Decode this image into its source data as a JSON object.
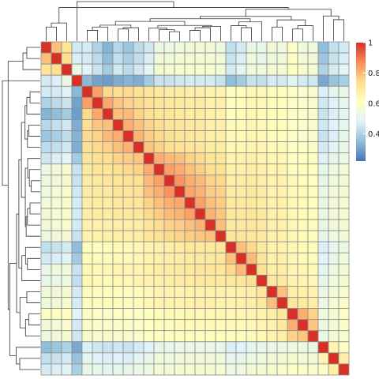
{
  "chart_data": {
    "type": "heatmap",
    "title": "",
    "legend": {
      "position": "right",
      "ticks": [
        "1",
        "0.8",
        "0.6",
        "0.4"
      ],
      "tick_values": [
        1,
        0.8,
        0.6,
        0.4
      ],
      "range": [
        0.22,
        1.0
      ],
      "colors": [
        "#4575b4",
        "#91bfdb",
        "#e0f3f8",
        "#ffffbf",
        "#fee090",
        "#fc8d59",
        "#d73027"
      ]
    },
    "row_dendrogram": true,
    "column_dendrogram": true,
    "grid": true,
    "cell_border_color": "#8c8c8c",
    "n": 30,
    "values": [
      [
        1.0,
        0.79,
        0.72,
        0.46,
        0.46,
        0.4,
        0.33,
        0.41,
        0.37,
        0.42,
        0.45,
        0.53,
        0.53,
        0.54,
        0.55,
        0.55,
        0.55,
        0.53,
        0.43,
        0.46,
        0.52,
        0.51,
        0.55,
        0.54,
        0.6,
        0.55,
        0.54,
        0.35,
        0.43,
        0.46
      ],
      [
        0.79,
        1.0,
        0.74,
        0.47,
        0.46,
        0.42,
        0.35,
        0.43,
        0.39,
        0.43,
        0.47,
        0.55,
        0.55,
        0.56,
        0.56,
        0.56,
        0.56,
        0.55,
        0.44,
        0.47,
        0.54,
        0.52,
        0.55,
        0.55,
        0.6,
        0.56,
        0.55,
        0.37,
        0.44,
        0.47
      ],
      [
        0.72,
        0.74,
        1.0,
        0.52,
        0.48,
        0.44,
        0.38,
        0.45,
        0.42,
        0.45,
        0.49,
        0.57,
        0.57,
        0.58,
        0.58,
        0.58,
        0.58,
        0.56,
        0.46,
        0.49,
        0.55,
        0.54,
        0.57,
        0.57,
        0.61,
        0.58,
        0.57,
        0.4,
        0.46,
        0.49
      ],
      [
        0.46,
        0.47,
        0.52,
        1.0,
        0.34,
        0.3,
        0.29,
        0.32,
        0.33,
        0.32,
        0.38,
        0.44,
        0.44,
        0.45,
        0.46,
        0.46,
        0.46,
        0.44,
        0.35,
        0.38,
        0.44,
        0.43,
        0.46,
        0.46,
        0.49,
        0.46,
        0.45,
        0.31,
        0.36,
        0.39
      ],
      [
        0.46,
        0.46,
        0.48,
        0.34,
        1.0,
        0.84,
        0.75,
        0.74,
        0.75,
        0.73,
        0.71,
        0.7,
        0.69,
        0.69,
        0.68,
        0.68,
        0.66,
        0.66,
        0.62,
        0.62,
        0.64,
        0.64,
        0.62,
        0.62,
        0.6,
        0.59,
        0.58,
        0.47,
        0.5,
        0.52
      ],
      [
        0.4,
        0.42,
        0.44,
        0.3,
        0.84,
        1.0,
        0.83,
        0.78,
        0.76,
        0.75,
        0.73,
        0.72,
        0.7,
        0.7,
        0.69,
        0.69,
        0.67,
        0.67,
        0.62,
        0.62,
        0.64,
        0.64,
        0.62,
        0.62,
        0.6,
        0.59,
        0.58,
        0.45,
        0.48,
        0.51
      ],
      [
        0.33,
        0.35,
        0.38,
        0.29,
        0.75,
        0.83,
        1.0,
        0.79,
        0.8,
        0.76,
        0.74,
        0.72,
        0.71,
        0.7,
        0.69,
        0.69,
        0.67,
        0.67,
        0.62,
        0.62,
        0.64,
        0.63,
        0.62,
        0.62,
        0.59,
        0.59,
        0.58,
        0.44,
        0.47,
        0.5
      ],
      [
        0.41,
        0.43,
        0.45,
        0.32,
        0.74,
        0.78,
        0.79,
        1.0,
        0.82,
        0.79,
        0.76,
        0.74,
        0.72,
        0.72,
        0.7,
        0.7,
        0.68,
        0.68,
        0.63,
        0.63,
        0.65,
        0.64,
        0.62,
        0.62,
        0.6,
        0.59,
        0.58,
        0.45,
        0.48,
        0.51
      ],
      [
        0.37,
        0.39,
        0.42,
        0.33,
        0.75,
        0.76,
        0.8,
        0.82,
        1.0,
        0.81,
        0.77,
        0.75,
        0.73,
        0.72,
        0.71,
        0.7,
        0.68,
        0.68,
        0.63,
        0.63,
        0.65,
        0.64,
        0.62,
        0.62,
        0.6,
        0.59,
        0.58,
        0.44,
        0.47,
        0.51
      ],
      [
        0.42,
        0.43,
        0.45,
        0.32,
        0.73,
        0.75,
        0.76,
        0.79,
        0.81,
        1.0,
        0.78,
        0.76,
        0.74,
        0.73,
        0.72,
        0.71,
        0.69,
        0.69,
        0.64,
        0.64,
        0.65,
        0.65,
        0.63,
        0.63,
        0.6,
        0.6,
        0.59,
        0.46,
        0.49,
        0.52
      ],
      [
        0.45,
        0.47,
        0.49,
        0.38,
        0.71,
        0.73,
        0.74,
        0.76,
        0.77,
        0.78,
        1.0,
        0.82,
        0.8,
        0.79,
        0.76,
        0.75,
        0.72,
        0.71,
        0.66,
        0.66,
        0.67,
        0.66,
        0.64,
        0.64,
        0.61,
        0.61,
        0.6,
        0.48,
        0.51,
        0.53
      ],
      [
        0.53,
        0.55,
        0.57,
        0.44,
        0.7,
        0.72,
        0.72,
        0.74,
        0.75,
        0.76,
        0.82,
        1.0,
        0.84,
        0.82,
        0.79,
        0.77,
        0.74,
        0.73,
        0.67,
        0.67,
        0.68,
        0.67,
        0.65,
        0.65,
        0.62,
        0.62,
        0.61,
        0.51,
        0.54,
        0.56
      ],
      [
        0.53,
        0.55,
        0.57,
        0.44,
        0.69,
        0.7,
        0.71,
        0.72,
        0.73,
        0.74,
        0.8,
        0.84,
        1.0,
        0.86,
        0.82,
        0.8,
        0.76,
        0.75,
        0.68,
        0.68,
        0.69,
        0.68,
        0.66,
        0.66,
        0.63,
        0.62,
        0.61,
        0.51,
        0.54,
        0.56
      ],
      [
        0.54,
        0.56,
        0.58,
        0.45,
        0.69,
        0.7,
        0.7,
        0.72,
        0.72,
        0.73,
        0.79,
        0.82,
        0.86,
        1.0,
        0.83,
        0.81,
        0.77,
        0.76,
        0.69,
        0.69,
        0.7,
        0.69,
        0.66,
        0.66,
        0.63,
        0.63,
        0.62,
        0.52,
        0.55,
        0.57
      ],
      [
        0.55,
        0.56,
        0.58,
        0.46,
        0.68,
        0.69,
        0.69,
        0.7,
        0.71,
        0.72,
        0.76,
        0.79,
        0.82,
        0.83,
        1.0,
        0.84,
        0.79,
        0.77,
        0.7,
        0.7,
        0.7,
        0.69,
        0.67,
        0.67,
        0.64,
        0.63,
        0.62,
        0.52,
        0.55,
        0.57
      ],
      [
        0.55,
        0.56,
        0.58,
        0.46,
        0.68,
        0.69,
        0.69,
        0.7,
        0.7,
        0.71,
        0.75,
        0.77,
        0.8,
        0.81,
        0.84,
        1.0,
        0.81,
        0.78,
        0.7,
        0.7,
        0.71,
        0.7,
        0.67,
        0.67,
        0.64,
        0.63,
        0.62,
        0.52,
        0.55,
        0.57
      ],
      [
        0.55,
        0.56,
        0.58,
        0.46,
        0.66,
        0.67,
        0.67,
        0.68,
        0.68,
        0.69,
        0.72,
        0.74,
        0.76,
        0.77,
        0.79,
        0.81,
        1.0,
        0.79,
        0.7,
        0.7,
        0.71,
        0.7,
        0.67,
        0.67,
        0.64,
        0.63,
        0.62,
        0.52,
        0.55,
        0.57
      ],
      [
        0.53,
        0.55,
        0.56,
        0.44,
        0.66,
        0.67,
        0.67,
        0.68,
        0.68,
        0.69,
        0.71,
        0.73,
        0.75,
        0.76,
        0.77,
        0.78,
        0.79,
        1.0,
        0.71,
        0.71,
        0.71,
        0.7,
        0.67,
        0.67,
        0.64,
        0.63,
        0.62,
        0.51,
        0.54,
        0.56
      ],
      [
        0.43,
        0.44,
        0.46,
        0.35,
        0.62,
        0.62,
        0.62,
        0.63,
        0.63,
        0.64,
        0.66,
        0.67,
        0.68,
        0.69,
        0.7,
        0.7,
        0.7,
        0.71,
        1.0,
        0.79,
        0.75,
        0.7,
        0.66,
        0.66,
        0.64,
        0.63,
        0.62,
        0.47,
        0.5,
        0.53
      ],
      [
        0.46,
        0.47,
        0.49,
        0.38,
        0.62,
        0.62,
        0.62,
        0.63,
        0.63,
        0.64,
        0.66,
        0.67,
        0.68,
        0.69,
        0.7,
        0.7,
        0.7,
        0.71,
        0.79,
        1.0,
        0.8,
        0.71,
        0.67,
        0.67,
        0.64,
        0.63,
        0.62,
        0.48,
        0.51,
        0.54
      ],
      [
        0.52,
        0.54,
        0.55,
        0.44,
        0.64,
        0.64,
        0.64,
        0.65,
        0.65,
        0.65,
        0.67,
        0.68,
        0.69,
        0.7,
        0.7,
        0.71,
        0.71,
        0.71,
        0.75,
        0.8,
        1.0,
        0.73,
        0.68,
        0.68,
        0.65,
        0.64,
        0.63,
        0.5,
        0.53,
        0.56
      ],
      [
        0.51,
        0.52,
        0.54,
        0.43,
        0.64,
        0.64,
        0.63,
        0.64,
        0.64,
        0.65,
        0.66,
        0.67,
        0.68,
        0.69,
        0.69,
        0.7,
        0.7,
        0.7,
        0.7,
        0.71,
        0.73,
        1.0,
        0.71,
        0.7,
        0.66,
        0.65,
        0.64,
        0.51,
        0.54,
        0.57
      ],
      [
        0.55,
        0.55,
        0.57,
        0.46,
        0.62,
        0.62,
        0.62,
        0.62,
        0.62,
        0.63,
        0.64,
        0.65,
        0.66,
        0.66,
        0.67,
        0.67,
        0.67,
        0.67,
        0.66,
        0.67,
        0.68,
        0.71,
        1.0,
        0.79,
        0.68,
        0.67,
        0.66,
        0.52,
        0.55,
        0.58
      ],
      [
        0.54,
        0.55,
        0.57,
        0.46,
        0.62,
        0.62,
        0.62,
        0.62,
        0.62,
        0.63,
        0.64,
        0.65,
        0.66,
        0.66,
        0.67,
        0.67,
        0.67,
        0.67,
        0.66,
        0.67,
        0.68,
        0.7,
        0.79,
        1.0,
        0.71,
        0.7,
        0.68,
        0.53,
        0.56,
        0.59
      ],
      [
        0.6,
        0.6,
        0.61,
        0.49,
        0.6,
        0.6,
        0.59,
        0.6,
        0.6,
        0.6,
        0.61,
        0.62,
        0.63,
        0.63,
        0.64,
        0.64,
        0.64,
        0.64,
        0.64,
        0.64,
        0.65,
        0.66,
        0.68,
        0.71,
        1.0,
        0.82,
        0.76,
        0.54,
        0.57,
        0.6
      ],
      [
        0.55,
        0.56,
        0.58,
        0.46,
        0.59,
        0.59,
        0.59,
        0.59,
        0.59,
        0.6,
        0.61,
        0.62,
        0.62,
        0.63,
        0.63,
        0.63,
        0.63,
        0.63,
        0.63,
        0.63,
        0.64,
        0.65,
        0.67,
        0.7,
        0.82,
        1.0,
        0.78,
        0.53,
        0.56,
        0.59
      ],
      [
        0.54,
        0.55,
        0.57,
        0.45,
        0.58,
        0.58,
        0.58,
        0.58,
        0.58,
        0.59,
        0.6,
        0.61,
        0.61,
        0.62,
        0.62,
        0.62,
        0.62,
        0.62,
        0.62,
        0.62,
        0.63,
        0.64,
        0.66,
        0.68,
        0.76,
        0.78,
        1.0,
        0.52,
        0.55,
        0.58
      ],
      [
        0.35,
        0.37,
        0.4,
        0.31,
        0.47,
        0.45,
        0.44,
        0.45,
        0.44,
        0.46,
        0.48,
        0.51,
        0.51,
        0.52,
        0.52,
        0.52,
        0.52,
        0.51,
        0.47,
        0.48,
        0.5,
        0.51,
        0.52,
        0.53,
        0.54,
        0.53,
        0.52,
        1.0,
        0.65,
        0.6
      ],
      [
        0.43,
        0.44,
        0.46,
        0.36,
        0.5,
        0.48,
        0.47,
        0.48,
        0.47,
        0.49,
        0.51,
        0.54,
        0.54,
        0.55,
        0.55,
        0.55,
        0.55,
        0.54,
        0.5,
        0.51,
        0.53,
        0.54,
        0.55,
        0.56,
        0.57,
        0.56,
        0.55,
        0.65,
        1.0,
        0.68
      ],
      [
        0.46,
        0.47,
        0.49,
        0.39,
        0.52,
        0.51,
        0.5,
        0.51,
        0.51,
        0.52,
        0.53,
        0.56,
        0.56,
        0.57,
        0.57,
        0.57,
        0.57,
        0.56,
        0.53,
        0.54,
        0.56,
        0.57,
        0.58,
        0.59,
        0.6,
        0.59,
        0.58,
        0.6,
        0.68,
        1.0
      ]
    ]
  }
}
